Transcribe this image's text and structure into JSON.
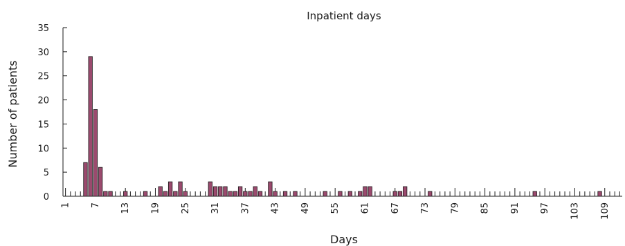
{
  "chart_data": {
    "type": "bar",
    "title": "Inpatient days",
    "xlabel": "Days",
    "ylabel": "Number of patients",
    "x_range": [
      1,
      112
    ],
    "ylim": [
      0,
      35
    ],
    "y_ticks": [
      0,
      5,
      10,
      15,
      20,
      25,
      30,
      35
    ],
    "x_tick_labels": [
      1,
      7,
      13,
      19,
      25,
      31,
      37,
      43,
      49,
      55,
      61,
      67,
      73,
      79,
      85,
      91,
      97,
      103,
      109
    ],
    "grid": false,
    "legend": "none",
    "bar_color": "#9b4a6e",
    "days": [
      5,
      6,
      7,
      8,
      9,
      10,
      13,
      17,
      20,
      21,
      22,
      23,
      24,
      25,
      30,
      31,
      32,
      33,
      34,
      35,
      36,
      37,
      38,
      39,
      40,
      42,
      43,
      45,
      47,
      53,
      56,
      58,
      60,
      61,
      62,
      67,
      68,
      69,
      74,
      95,
      108
    ],
    "values": [
      7,
      29,
      18,
      6,
      1,
      1,
      1,
      1,
      2,
      1,
      3,
      1,
      3,
      1,
      3,
      2,
      2,
      2,
      1,
      1,
      2,
      1,
      1,
      2,
      1,
      3,
      1,
      1,
      1,
      1,
      1,
      1,
      1,
      2,
      2,
      1,
      1,
      2,
      1,
      1,
      1
    ]
  }
}
